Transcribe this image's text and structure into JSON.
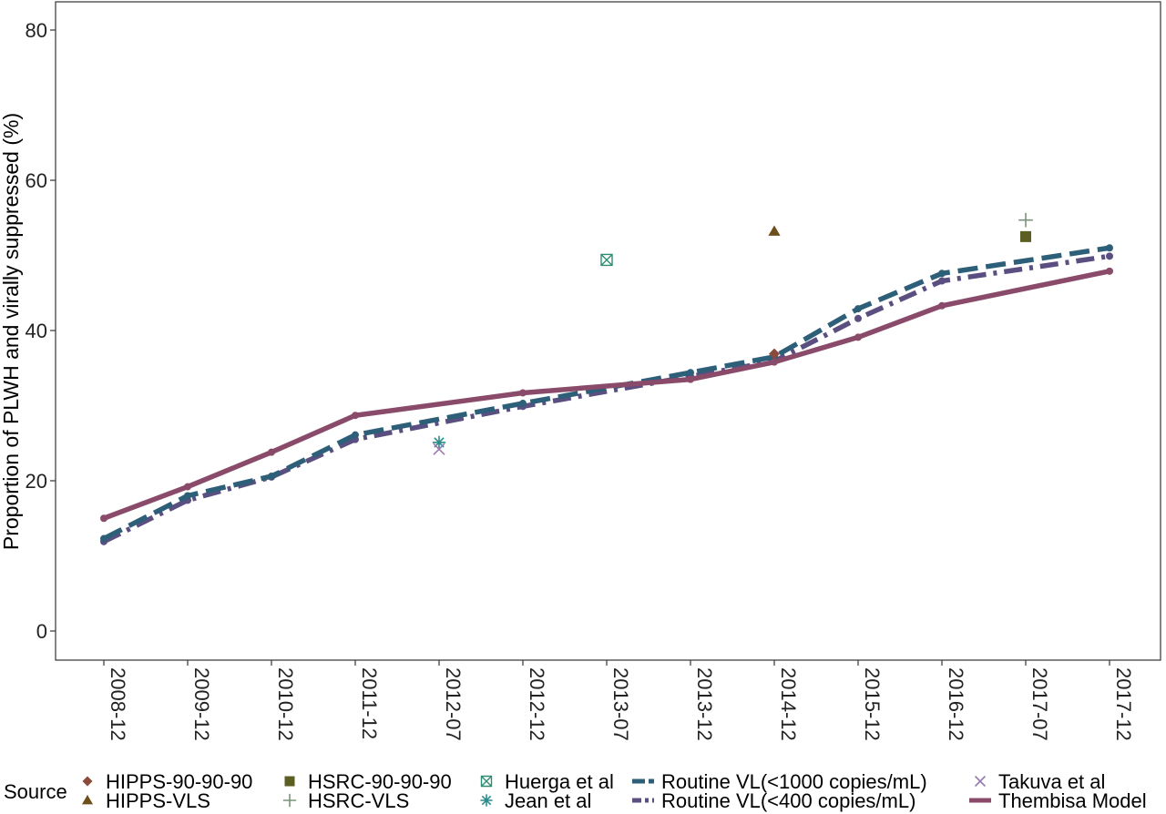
{
  "chart_data": {
    "type": "line",
    "title": "",
    "xlabel": "",
    "ylabel": "Proportion of PLWH and virally suppressed (%)",
    "categories": [
      "2008-12",
      "2009-12",
      "2010-12",
      "2011-12",
      "2012-07",
      "2012-12",
      "2013-07",
      "2013-12",
      "2014-12",
      "2015-12",
      "2016-12",
      "2017-07",
      "2017-12"
    ],
    "ylim": [
      0,
      80
    ],
    "yticks": [
      0,
      20,
      40,
      60,
      80
    ],
    "grid": false,
    "legend_title": "Source",
    "legend_position": "bottom",
    "series": [
      {
        "name": "Routine VL(<1000 copies/mL)",
        "kind": "line",
        "style": "longdash",
        "color": "#2d5f78",
        "points": [
          [
            "2008-12",
            12.3
          ],
          [
            "2009-12",
            18.0
          ],
          [
            "2010-12",
            20.6
          ],
          [
            "2011-12",
            26.1
          ],
          [
            "2012-12",
            30.3
          ],
          [
            "2013-12",
            34.4
          ],
          [
            "2014-12",
            36.5
          ],
          [
            "2015-12",
            42.9
          ],
          [
            "2016-12",
            47.6
          ],
          [
            "2017-12",
            51.0
          ]
        ]
      },
      {
        "name": "Routine VL(<400 copies/mL)",
        "kind": "line",
        "style": "dashdot",
        "color": "#5a4f80",
        "points": [
          [
            "2008-12",
            11.9
          ],
          [
            "2009-12",
            17.4
          ],
          [
            "2010-12",
            20.5
          ],
          [
            "2011-12",
            25.5
          ],
          [
            "2012-12",
            29.9
          ],
          [
            "2013-12",
            33.9
          ],
          [
            "2014-12",
            35.9
          ],
          [
            "2015-12",
            41.6
          ],
          [
            "2016-12",
            46.6
          ],
          [
            "2017-12",
            49.9
          ]
        ]
      },
      {
        "name": "Thembisa Model",
        "kind": "line",
        "style": "solid",
        "color": "#8a4a6a",
        "points": [
          [
            "2008-12",
            15.0
          ],
          [
            "2009-12",
            19.2
          ],
          [
            "2010-12",
            23.8
          ],
          [
            "2011-12",
            28.7
          ],
          [
            "2012-12",
            31.7
          ],
          [
            "2013-12",
            33.5
          ],
          [
            "2014-12",
            35.8
          ],
          [
            "2015-12",
            39.1
          ],
          [
            "2016-12",
            43.3
          ],
          [
            "2017-12",
            47.9
          ]
        ]
      },
      {
        "name": "HIPPS-90-90-90",
        "kind": "point",
        "shape": "diamond",
        "color": "#8c4a3c",
        "points": [
          [
            "2014-12",
            36.9
          ]
        ]
      },
      {
        "name": "HIPPS-VLS",
        "kind": "point",
        "shape": "triangle",
        "color": "#6e4f1c",
        "points": [
          [
            "2014-12",
            53.2
          ]
        ]
      },
      {
        "name": "HSRC-90-90-90",
        "kind": "point",
        "shape": "square",
        "color": "#5c5f23",
        "points": [
          [
            "2017-07",
            52.5
          ]
        ]
      },
      {
        "name": "HSRC-VLS",
        "kind": "point",
        "shape": "plus",
        "color": "#7a937c",
        "points": [
          [
            "2017-07",
            54.7
          ]
        ]
      },
      {
        "name": "Huerga et al",
        "kind": "point",
        "shape": "square-x",
        "color": "#2f8c72",
        "points": [
          [
            "2013-07",
            49.4
          ]
        ]
      },
      {
        "name": "Jean et al",
        "kind": "point",
        "shape": "asterisk",
        "color": "#2c8c8c",
        "points": [
          [
            "2012-07",
            25.1
          ]
        ]
      },
      {
        "name": "Takuva et al",
        "kind": "point",
        "shape": "cross",
        "color": "#9a7ab2",
        "points": [
          [
            "2012-07",
            24.2
          ]
        ]
      }
    ],
    "legend_rows": [
      [
        "HIPPS-90-90-90",
        "HSRC-90-90-90",
        "Huerga et al",
        "Routine VL(<1000 copies/mL)",
        "Takuva et al"
      ],
      [
        "HIPPS-VLS",
        "HSRC-VLS",
        "Jean et al",
        "Routine VL(<400 copies/mL)",
        "Thembisa Model"
      ]
    ]
  }
}
